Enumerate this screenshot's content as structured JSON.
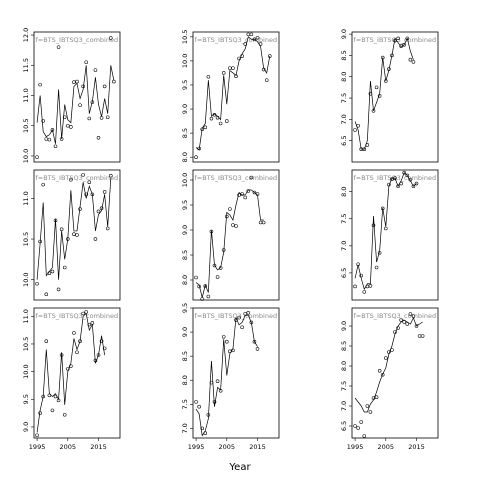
{
  "xlabel": "Year",
  "chart_data": [
    {
      "type": "scatter",
      "title": "f=BTS_IBTSQ3_combined",
      "xlim": [
        1994,
        2022
      ],
      "ylim": [
        9.9,
        12.05
      ],
      "yticks": [
        10.0,
        10.5,
        11.0,
        11.5,
        12.0
      ],
      "xticks": [],
      "x": [
        1995,
        1996,
        1997,
        1998,
        1999,
        2000,
        2001,
        2002,
        2003,
        2004,
        2005,
        2006,
        2007,
        2008,
        2009,
        2010,
        2011,
        2012,
        2013,
        2014,
        2015,
        2016,
        2017,
        2018,
        2019,
        2020,
        2021
      ],
      "points": [
        9.98,
        11.18,
        10.58,
        10.28,
        10.27,
        10.43,
        10.16,
        11.8,
        10.28,
        10.64,
        10.5,
        10.48,
        11.22,
        11.23,
        10.84,
        11.15,
        11.55,
        10.62,
        10.89,
        11.42,
        10.3,
        10.63,
        11.15,
        10.64,
        11.95,
        11.23,
        null
      ],
      "fit": [
        10.55,
        11.0,
        10.4,
        10.32,
        10.35,
        10.43,
        10.2,
        11.1,
        10.28,
        10.85,
        10.6,
        10.55,
        11.15,
        11.2,
        10.95,
        11.1,
        11.5,
        10.7,
        10.9,
        11.3,
        10.85,
        10.65,
        10.95,
        10.7,
        11.5,
        11.25,
        null
      ]
    },
    {
      "type": "scatter",
      "title": "f=BTS_IBTSQ3_combined",
      "xlim": [
        1994,
        2022
      ],
      "ylim": [
        7.9,
        10.6
      ],
      "yticks": [
        8.0,
        8.5,
        9.0,
        9.5,
        10.0,
        10.5
      ],
      "xticks": [],
      "x": [
        1995,
        1996,
        1997,
        1998,
        1999,
        2000,
        2001,
        2002,
        2003,
        2004,
        2005,
        2006,
        2007,
        2008,
        2009,
        2010,
        2011,
        2012,
        2013,
        2014,
        2015,
        2016,
        2017,
        2018,
        2019,
        2020,
        2021
      ],
      "points": [
        8.0,
        8.18,
        8.58,
        8.62,
        9.67,
        8.8,
        8.88,
        8.82,
        8.7,
        9.75,
        8.75,
        9.85,
        9.85,
        9.68,
        10.05,
        10.1,
        10.35,
        10.55,
        10.55,
        10.45,
        10.48,
        10.35,
        9.82,
        9.6,
        10.1,
        null,
        null
      ],
      "fit": [
        8.2,
        8.15,
        8.6,
        8.7,
        9.6,
        8.85,
        8.9,
        8.85,
        8.78,
        9.7,
        9.1,
        9.8,
        9.75,
        9.7,
        10.0,
        10.15,
        10.25,
        10.5,
        10.45,
        10.45,
        10.4,
        10.3,
        9.85,
        9.75,
        10.1,
        null,
        null
      ]
    },
    {
      "type": "scatter",
      "title": "f=BTS_IBTSQ3_combined",
      "xlim": [
        1994,
        2022
      ],
      "ylim": [
        6.0,
        9.05
      ],
      "yticks": [
        6.5,
        7.0,
        7.5,
        8.0,
        8.5,
        9.0
      ],
      "xticks": [],
      "x": [
        1995,
        1996,
        1997,
        1998,
        1999,
        2000,
        2001,
        2002,
        2003,
        2004,
        2005,
        2006,
        2007,
        2008,
        2009,
        2010,
        2011,
        2012,
        2013,
        2014,
        2015,
        2016,
        2017,
        2018,
        2019,
        2020,
        2021
      ],
      "points": [
        6.75,
        6.85,
        6.3,
        6.3,
        6.4,
        7.6,
        7.2,
        7.75,
        7.55,
        8.45,
        7.9,
        8.18,
        8.5,
        8.85,
        8.9,
        8.72,
        8.75,
        8.9,
        8.4,
        8.35,
        null,
        null,
        null,
        null,
        null,
        null,
        null
      ],
      "fit": [
        6.95,
        6.75,
        6.3,
        6.3,
        6.5,
        7.9,
        7.2,
        7.4,
        7.6,
        8.45,
        7.9,
        8.15,
        8.5,
        8.9,
        8.8,
        8.7,
        8.75,
        8.9,
        8.6,
        8.4,
        null,
        null,
        null,
        null,
        null,
        null,
        null
      ]
    },
    {
      "type": "scatter",
      "title": "f=BTS_IBTSQ3_combined",
      "xlim": [
        1994,
        2022
      ],
      "ylim": [
        9.75,
        11.35
      ],
      "yticks": [
        10.0,
        10.5,
        11.0
      ],
      "xticks": [],
      "x": [
        1995,
        1996,
        1997,
        1998,
        1999,
        2000,
        2001,
        2002,
        2003,
        2004,
        2005,
        2006,
        2007,
        2008,
        2009,
        2010,
        2011,
        2012,
        2013,
        2014,
        2015,
        2016,
        2017,
        2018,
        2019,
        2020,
        2021
      ],
      "points": [
        9.95,
        10.47,
        11.17,
        9.82,
        10.08,
        10.1,
        10.73,
        9.88,
        10.62,
        10.15,
        10.5,
        11.23,
        10.56,
        10.55,
        10.87,
        11.29,
        11.05,
        11.2,
        11.05,
        10.5,
        10.84,
        10.88,
        11.08,
        10.63,
        11.28,
        null,
        null
      ],
      "fit": [
        10.0,
        10.45,
        10.95,
        10.05,
        10.1,
        10.15,
        10.75,
        10.0,
        10.6,
        10.25,
        10.5,
        11.1,
        10.6,
        10.6,
        10.9,
        11.2,
        11.0,
        11.15,
        11.05,
        10.6,
        10.8,
        10.85,
        11.05,
        10.65,
        11.25,
        null,
        null
      ]
    },
    {
      "type": "scatter",
      "title": "f=BTS_IBTSQ3_combined",
      "xlim": [
        1994,
        2022
      ],
      "ylim": [
        7.6,
        10.2
      ],
      "yticks": [
        8.0,
        8.5,
        9.0,
        9.5,
        10.0
      ],
      "xticks": [],
      "x": [
        1995,
        1996,
        1997,
        1998,
        1999,
        2000,
        2001,
        2002,
        2003,
        2004,
        2005,
        2006,
        2007,
        2008,
        2009,
        2010,
        2011,
        2012,
        2013,
        2014,
        2015,
        2016,
        2017,
        2018,
        2019,
        2020,
        2021
      ],
      "points": [
        8.05,
        7.87,
        7.62,
        7.88,
        7.67,
        8.97,
        8.29,
        8.06,
        8.24,
        8.6,
        9.27,
        9.42,
        9.1,
        9.08,
        9.7,
        9.72,
        9.65,
        9.78,
        10.05,
        9.75,
        9.72,
        9.15,
        9.15,
        null,
        null,
        null,
        null
      ],
      "fit": [
        7.95,
        7.9,
        7.65,
        7.9,
        7.75,
        9.0,
        8.3,
        8.2,
        8.25,
        8.55,
        9.35,
        9.3,
        9.2,
        9.5,
        9.75,
        9.7,
        9.7,
        9.8,
        9.8,
        9.75,
        9.7,
        9.2,
        9.2,
        null,
        null,
        null,
        null
      ]
    },
    {
      "type": "scatter",
      "title": "f=BTS_IBTSQ3_combined",
      "xlim": [
        1994,
        2022
      ],
      "ylim": [
        6.0,
        8.4
      ],
      "yticks": [
        6.5,
        7.0,
        7.5,
        8.0
      ],
      "xticks": [],
      "x": [
        1995,
        1996,
        1997,
        1998,
        1999,
        2000,
        2001,
        2002,
        2003,
        2004,
        2005,
        2006,
        2007,
        2008,
        2009,
        2010,
        2011,
        2012,
        2013,
        2014,
        2015,
        2016,
        2017,
        2018,
        2019,
        2020,
        2021
      ],
      "points": [
        6.25,
        6.66,
        6.45,
        6.15,
        6.25,
        6.26,
        7.38,
        6.6,
        6.87,
        7.69,
        7.32,
        8.13,
        8.23,
        8.25,
        8.1,
        8.15,
        8.35,
        8.3,
        8.22,
        8.1,
        8.15,
        null,
        null,
        null,
        null,
        null,
        null
      ],
      "fit": [
        6.4,
        6.65,
        6.4,
        6.2,
        6.3,
        6.3,
        7.55,
        6.7,
        6.9,
        7.7,
        7.35,
        8.1,
        8.25,
        8.25,
        8.1,
        8.2,
        8.35,
        8.3,
        8.2,
        8.1,
        8.15,
        null,
        null,
        null,
        null,
        null,
        null
      ]
    },
    {
      "type": "scatter",
      "title": "f=BTS_IBTSQ3_combined",
      "xlim": [
        1994,
        2022
      ],
      "ylim": [
        8.8,
        11.15
      ],
      "yticks": [
        9.0,
        9.5,
        10.0,
        10.5,
        11.0
      ],
      "xticks": [
        1995,
        2005,
        2015
      ],
      "x": [
        1995,
        1996,
        1997,
        1998,
        1999,
        2000,
        2001,
        2002,
        2003,
        2004,
        2005,
        2006,
        2007,
        2008,
        2009,
        2010,
        2011,
        2012,
        2013,
        2014,
        2015,
        2016,
        2017,
        2018,
        2019,
        2020,
        2021
      ],
      "points": [
        8.85,
        9.25,
        9.55,
        10.55,
        9.57,
        9.3,
        9.55,
        9.48,
        10.3,
        9.22,
        10.05,
        10.1,
        10.7,
        10.35,
        10.55,
        11.05,
        11.08,
        10.85,
        10.88,
        10.2,
        10.3,
        10.55,
        10.42,
        null,
        null,
        null,
        null
      ],
      "fit": [
        8.9,
        9.3,
        9.55,
        10.4,
        9.6,
        9.55,
        9.6,
        9.5,
        10.35,
        9.4,
        10.0,
        10.15,
        10.6,
        10.4,
        10.55,
        11.0,
        11.05,
        10.75,
        10.85,
        10.15,
        10.3,
        10.65,
        10.3,
        null,
        null,
        null,
        null
      ]
    },
    {
      "type": "scatter",
      "title": "f=BTS_IBTSQ3_combined",
      "xlim": [
        1994,
        2022
      ],
      "ylim": [
        6.8,
        9.5
      ],
      "yticks": [
        7.0,
        7.5,
        8.0,
        8.5,
        9.0,
        9.5
      ],
      "xticks": [
        1995,
        2005,
        2015
      ],
      "x": [
        1995,
        1996,
        1997,
        1998,
        1999,
        2000,
        2001,
        2002,
        2003,
        2004,
        2005,
        2006,
        2007,
        2008,
        2009,
        2010,
        2011,
        2012,
        2013,
        2014,
        2015,
        2016,
        2017,
        2018,
        2019,
        2020,
        2021
      ],
      "points": [
        7.55,
        7.45,
        7.0,
        6.9,
        7.28,
        7.95,
        7.55,
        7.98,
        7.78,
        8.9,
        8.8,
        8.6,
        8.62,
        9.25,
        9.3,
        9.1,
        9.38,
        9.4,
        9.2,
        8.8,
        8.65,
        null,
        null,
        null,
        null,
        null,
        null
      ],
      "fit": [
        7.4,
        7.3,
        6.85,
        6.95,
        7.2,
        8.4,
        7.45,
        7.85,
        7.8,
        8.85,
        8.1,
        8.55,
        8.65,
        9.3,
        9.15,
        9.2,
        9.35,
        9.35,
        9.2,
        8.8,
        8.7,
        null,
        null,
        null,
        null,
        null,
        null
      ]
    },
    {
      "type": "scatter",
      "title": "f=BTS_IBTSQ3_combined",
      "xlim": [
        1994,
        2022
      ],
      "ylim": [
        6.2,
        9.45
      ],
      "yticks": [
        6.5,
        7.0,
        7.5,
        8.0,
        8.5,
        9.0
      ],
      "xticks": [
        1995,
        2005,
        2015
      ],
      "x": [
        1995,
        1996,
        1997,
        1998,
        1999,
        2000,
        2001,
        2002,
        2003,
        2004,
        2005,
        2006,
        2007,
        2008,
        2009,
        2010,
        2011,
        2012,
        2013,
        2014,
        2015,
        2016,
        2017,
        2018,
        2019,
        2020,
        2021
      ],
      "points": [
        6.5,
        6.45,
        6.6,
        6.25,
        7.0,
        6.85,
        7.2,
        7.22,
        7.88,
        7.78,
        8.2,
        8.35,
        8.4,
        8.85,
        8.95,
        9.15,
        9.1,
        9.05,
        9.3,
        9.25,
        9.0,
        8.75,
        8.75,
        null,
        null,
        null,
        null
      ],
      "fit": [
        7.2,
        7.1,
        7.0,
        6.85,
        6.85,
        7.05,
        7.15,
        7.35,
        7.6,
        7.8,
        7.95,
        8.3,
        8.5,
        8.8,
        9.0,
        9.1,
        9.15,
        9.1,
        9.05,
        9.2,
        9.0,
        9.05,
        9.1,
        null,
        null,
        null,
        null
      ]
    }
  ]
}
